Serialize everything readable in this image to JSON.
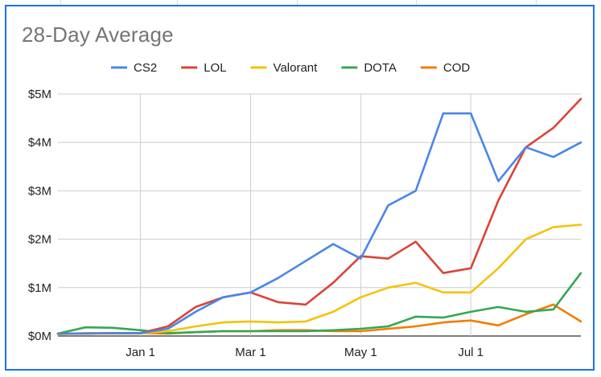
{
  "chart_data": {
    "type": "line",
    "title": "28-Day Average",
    "xlabel": "",
    "ylabel": "",
    "x_tick_labels": [
      "Jan 1",
      "Mar 1",
      "May 1",
      "Jul 1"
    ],
    "y_tick_labels": [
      "$0M",
      "$1M",
      "$2M",
      "$3M",
      "$4M",
      "$5M"
    ],
    "ylim": [
      0,
      5
    ],
    "legend_position": "top",
    "grid": true,
    "x": [
      "Nov 15",
      "Dec 1",
      "Dec 15",
      "Jan 1",
      "Jan 15",
      "Feb 1",
      "Feb 15",
      "Mar 1",
      "Mar 15",
      "Apr 1",
      "Apr 15",
      "May 1",
      "May 15",
      "Jun 1",
      "Jun 15",
      "Jul 1",
      "Jul 15",
      "Aug 1",
      "Aug 15",
      "Sep 1"
    ],
    "series": [
      {
        "name": "CS2",
        "color": "#4a86e8",
        "values": [
          0.05,
          0.05,
          0.06,
          0.06,
          0.15,
          0.5,
          0.8,
          0.9,
          1.2,
          1.55,
          1.9,
          1.6,
          2.7,
          3.0,
          4.6,
          4.6,
          3.2,
          3.9,
          3.7,
          4.0
        ]
      },
      {
        "name": "LOL",
        "color": "#db4437",
        "values": [
          0.05,
          0.05,
          0.06,
          0.06,
          0.2,
          0.6,
          0.8,
          0.9,
          0.7,
          0.65,
          1.1,
          1.65,
          1.6,
          1.95,
          1.3,
          1.4,
          2.8,
          3.9,
          4.3,
          4.9
        ]
      },
      {
        "name": "Valorant",
        "color": "#f4c20d",
        "values": [
          0.04,
          0.05,
          0.05,
          0.05,
          0.1,
          0.2,
          0.28,
          0.3,
          0.28,
          0.3,
          0.5,
          0.8,
          1.0,
          1.1,
          0.9,
          0.9,
          1.4,
          2.0,
          2.25,
          2.3
        ]
      },
      {
        "name": "DOTA",
        "color": "#34a853",
        "values": [
          0.05,
          0.18,
          0.17,
          0.12,
          0.06,
          0.08,
          0.1,
          0.1,
          0.1,
          0.1,
          0.12,
          0.15,
          0.2,
          0.4,
          0.38,
          0.5,
          0.6,
          0.5,
          0.55,
          1.3
        ]
      },
      {
        "name": "COD",
        "color": "#f57c00",
        "values": [
          0.04,
          0.06,
          0.06,
          0.06,
          0.05,
          0.08,
          0.1,
          0.1,
          0.12,
          0.12,
          0.1,
          0.1,
          0.15,
          0.2,
          0.28,
          0.32,
          0.22,
          0.45,
          0.65,
          0.3
        ]
      }
    ]
  }
}
